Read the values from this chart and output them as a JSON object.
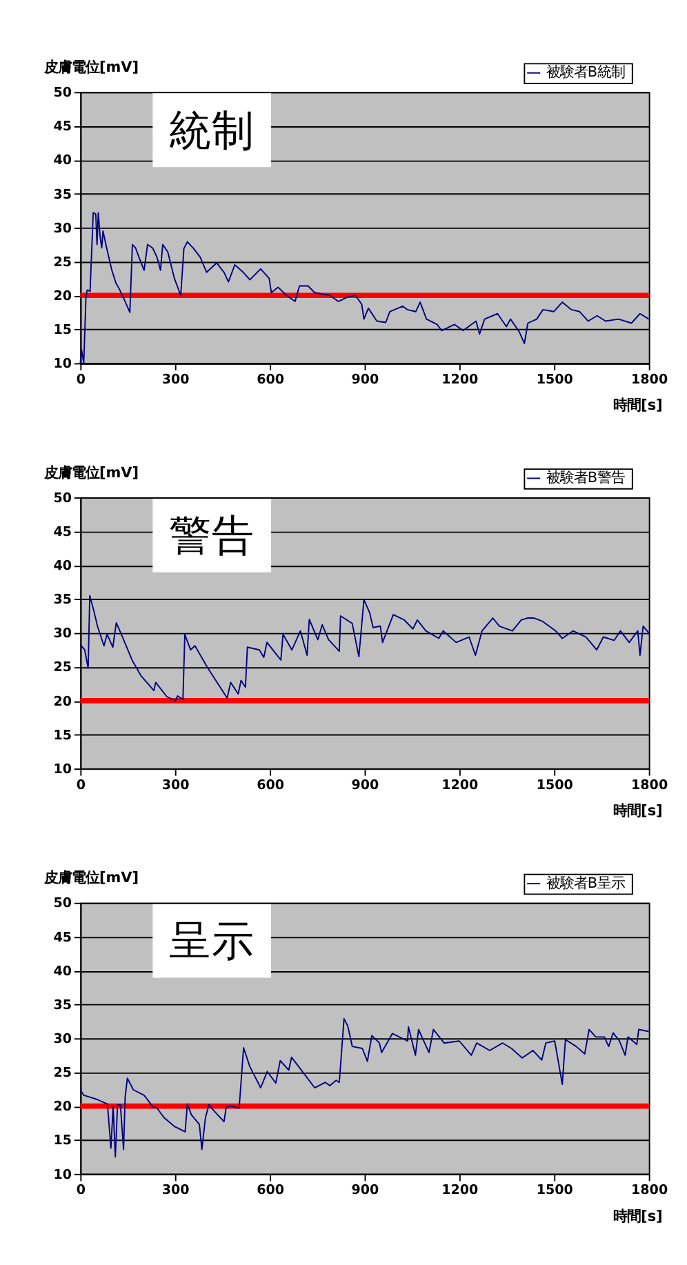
{
  "chart_data": [
    {
      "type": "line",
      "title": "統制",
      "xlabel": "時間[s]",
      "ylabel": "皮膚電位[mV]",
      "xlim": [
        0,
        1800
      ],
      "xticks": [
        0,
        300,
        600,
        900,
        1200,
        1500,
        1800
      ],
      "ylim": [
        10,
        50
      ],
      "yticks": [
        10,
        15,
        20,
        25,
        30,
        35,
        40,
        45,
        50
      ],
      "grid": "y",
      "legend": "top right",
      "ref_lines": [
        {
          "axis": "y",
          "value": 20,
          "color": "#ff0000"
        }
      ],
      "series": [
        {
          "name": "被験者B統制",
          "color": "#000080",
          "x": [
            0,
            4,
            11,
            18,
            22,
            31,
            41,
            49,
            53,
            57,
            63,
            68,
            72,
            82,
            100,
            113,
            123,
            140,
            157,
            165,
            175,
            186,
            202,
            213,
            229,
            243,
            254,
            261,
            277,
            298,
            318,
            328,
            339,
            359,
            380,
            400,
            432,
            455,
            469,
            489,
            516,
            537,
            571,
            598,
            605,
            626,
            653,
            680,
            694,
            721,
            742,
            790,
            817,
            844,
            871,
            891,
            898,
            912,
            939,
            967,
            980,
            1021,
            1035,
            1062,
            1076,
            1096,
            1130,
            1144,
            1185,
            1212,
            1253,
            1264,
            1280,
            1321,
            1349,
            1362,
            1390,
            1406,
            1417,
            1445,
            1465,
            1499,
            1526,
            1554,
            1581,
            1608,
            1636,
            1663,
            1704,
            1745,
            1772,
            1800
          ],
          "values": [
            10,
            12,
            10,
            19.8,
            20.8,
            20.6,
            32.2,
            32,
            27.5,
            32.2,
            28.6,
            27,
            29.5,
            27.3,
            23.7,
            21.8,
            21,
            19.3,
            17.5,
            27.5,
            27,
            25.6,
            23.7,
            27.5,
            27,
            25.6,
            23.7,
            27.5,
            26.4,
            22.5,
            20,
            26.9,
            27.9,
            26.9,
            25.6,
            23.4,
            24.8,
            23.4,
            22,
            24.5,
            23.4,
            22.3,
            23.9,
            22.5,
            20.4,
            21.2,
            20,
            19.1,
            21.4,
            21.4,
            20.4,
            20,
            19.1,
            19.7,
            20,
            18.7,
            16.5,
            18.1,
            16.2,
            16,
            17.6,
            18.4,
            17.9,
            17.6,
            19,
            16.5,
            15.7,
            14.8,
            15.7,
            14.8,
            16.2,
            14.3,
            16.5,
            17.3,
            15.4,
            16.5,
            14.6,
            12.9,
            15.9,
            16.5,
            17.9,
            17.6,
            19,
            17.9,
            17.6,
            16.2,
            17,
            16.2,
            16.5,
            15.9,
            17.3,
            16.5
          ]
        }
      ]
    },
    {
      "type": "line",
      "title": "警告",
      "xlabel": "時間[s]",
      "ylabel": "皮膚電位[mV]",
      "xlim": [
        0,
        1800
      ],
      "xticks": [
        0,
        300,
        600,
        900,
        1200,
        1500,
        1800
      ],
      "ylim": [
        10,
        50
      ],
      "yticks": [
        10,
        15,
        20,
        25,
        30,
        35,
        40,
        45,
        50
      ],
      "grid": "y",
      "legend": "top right",
      "ref_lines": [
        {
          "axis": "y",
          "value": 20,
          "color": "#ff0000"
        }
      ],
      "series": [
        {
          "name": "被験者B警告",
          "color": "#000080",
          "x": [
            0,
            14,
            25,
            30,
            41,
            55,
            75,
            85,
            103,
            114,
            130,
            164,
            192,
            233,
            239,
            274,
            301,
            308,
            325,
            331,
            349,
            363,
            404,
            465,
            476,
            500,
            509,
            523,
            529,
            567,
            581,
            591,
            635,
            642,
            670,
            697,
            718,
            725,
            752,
            766,
            786,
            820,
            824,
            861,
            882,
            898,
            916,
            927,
            950,
            957,
            991,
            1026,
            1053,
            1067,
            1094,
            1135,
            1149,
            1190,
            1231,
            1251,
            1272,
            1306,
            1327,
            1368,
            1396,
            1416,
            1437,
            1464,
            1505,
            1526,
            1560,
            1601,
            1635,
            1656,
            1690,
            1710,
            1738,
            1765,
            1772,
            1782,
            1800
          ],
          "values": [
            28.3,
            27.5,
            24.8,
            35.5,
            33.6,
            30.9,
            28.1,
            29.8,
            27.9,
            31.5,
            29.8,
            26,
            23.7,
            21.5,
            22.7,
            20.6,
            20,
            20.7,
            20.2,
            29.8,
            27.5,
            28.1,
            24.8,
            20.4,
            22.7,
            21,
            23,
            22,
            27.9,
            27.5,
            26.4,
            28.6,
            26,
            29.8,
            27.5,
            30.3,
            26.7,
            32,
            29,
            31.2,
            29,
            27.3,
            32.5,
            31.4,
            26.5,
            34.9,
            33,
            30.8,
            31,
            28.6,
            32.7,
            31.9,
            30.6,
            31.9,
            30.3,
            29.2,
            30.3,
            28.6,
            29.4,
            26.7,
            30.3,
            32.2,
            31,
            30.3,
            31.9,
            32.2,
            32.2,
            31.7,
            30.3,
            29.2,
            30.3,
            29.4,
            27.5,
            29.4,
            28.9,
            30.3,
            28.6,
            30.3,
            26.7,
            31,
            30
          ]
        }
      ]
    },
    {
      "type": "line",
      "title": "呈示",
      "xlabel": "時間[s]",
      "ylabel": "皮膚電位[mV]",
      "xlim": [
        0,
        1800
      ],
      "xticks": [
        0,
        300,
        600,
        900,
        1200,
        1500,
        1800
      ],
      "ylim": [
        10,
        50
      ],
      "yticks": [
        10,
        15,
        20,
        25,
        30,
        35,
        40,
        45,
        50
      ],
      "grid": "y",
      "legend": "top right",
      "ref_lines": [
        {
          "axis": "y",
          "value": 20,
          "color": "#ff0000"
        }
      ],
      "series": [
        {
          "name": "被験者B呈示",
          "color": "#000080",
          "x": [
            0,
            11,
            52,
            86,
            97,
            104,
            111,
            118,
            127,
            137,
            142,
            149,
            168,
            202,
            230,
            243,
            265,
            298,
            332,
            339,
            352,
            377,
            385,
            396,
            407,
            421,
            455,
            462,
            476,
            503,
            517,
            537,
            571,
            592,
            619,
            633,
            660,
            669,
            708,
            742,
            776,
            790,
            810,
            820,
            835,
            847,
            861,
            893,
            909,
            923,
            947,
            954,
            988,
            1036,
            1039,
            1061,
            1071,
            1104,
            1118,
            1152,
            1200,
            1238,
            1255,
            1296,
            1337,
            1365,
            1399,
            1433,
            1461,
            1474,
            1502,
            1526,
            1536,
            1570,
            1597,
            1611,
            1632,
            1659,
            1673,
            1687,
            1707,
            1725,
            1734,
            1762,
            1768,
            1800
          ],
          "values": [
            22.4,
            21.6,
            21,
            20.3,
            13.8,
            19.9,
            12.5,
            20.2,
            20.2,
            13.6,
            21.3,
            24.1,
            22.4,
            21.6,
            19.9,
            19.7,
            18.3,
            17,
            16.2,
            20.3,
            18.7,
            17.3,
            13.6,
            18.2,
            20.2,
            19.4,
            17.7,
            19.8,
            20,
            19.7,
            28.6,
            25.8,
            22.7,
            25.1,
            23.4,
            26.7,
            25.3,
            27.2,
            24.8,
            22.7,
            23.5,
            23,
            23.8,
            23.5,
            32.9,
            31.8,
            28.8,
            28.5,
            26.6,
            30.4,
            29.3,
            27.9,
            30.7,
            29.6,
            31.7,
            27.5,
            31.3,
            27.9,
            31.3,
            29.3,
            29.6,
            27.5,
            29.3,
            28.2,
            29.3,
            28.5,
            27.1,
            28.2,
            26.8,
            29.3,
            29.6,
            23.2,
            29.8,
            28.8,
            27.7,
            31.3,
            30.2,
            30.2,
            28.8,
            30.8,
            29.6,
            27.5,
            30.2,
            29.1,
            31.3,
            31
          ]
        }
      ]
    }
  ]
}
